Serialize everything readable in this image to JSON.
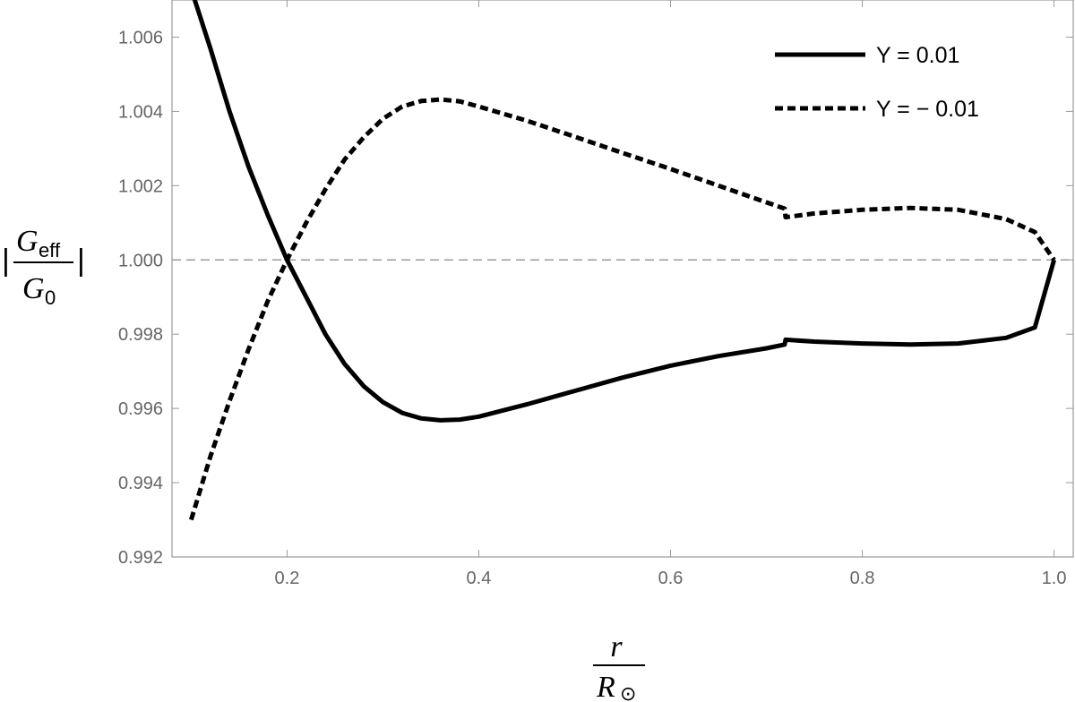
{
  "chart_data": {
    "type": "line",
    "xlim": [
      0.08,
      1.02
    ],
    "ylim": [
      0.992,
      1.007
    ],
    "x_ticks": [
      0.2,
      0.4,
      0.6,
      0.8,
      1.0
    ],
    "x_tick_labels": [
      "0.2",
      "0.4",
      "0.6",
      "0.8",
      "1.0"
    ],
    "y_ticks": [
      0.992,
      0.994,
      0.996,
      0.998,
      1.0,
      1.002,
      1.004,
      1.006
    ],
    "y_tick_labels": [
      "0.992",
      "0.994",
      "0.996",
      "0.998",
      "1.000",
      "1.002",
      "1.004",
      "1.006"
    ],
    "reference_line": {
      "y": 1.0,
      "style": "dashed",
      "color": "#888888"
    },
    "xlabel": {
      "numerator": "r",
      "denominator_main": "R",
      "denominator_sub": "⊙"
    },
    "ylabel": {
      "bar_left": "|",
      "bar_right": "|",
      "numerator_main": "G",
      "numerator_sub": "eff",
      "denominator_main": "G",
      "denominator_sub": "0"
    },
    "legend_position": "top-right",
    "series": [
      {
        "name": "Y = 0.01",
        "style": "solid",
        "color": "#000000",
        "points": [
          [
            0.1,
            1.0073
          ],
          [
            0.12,
            1.0057
          ],
          [
            0.14,
            1.004
          ],
          [
            0.16,
            1.0025
          ],
          [
            0.18,
            1.0012
          ],
          [
            0.2,
            1.0
          ],
          [
            0.22,
            0.999
          ],
          [
            0.24,
            0.998
          ],
          [
            0.26,
            0.9972
          ],
          [
            0.28,
            0.9966
          ],
          [
            0.3,
            0.99617
          ],
          [
            0.32,
            0.99588
          ],
          [
            0.34,
            0.99573
          ],
          [
            0.36,
            0.99568
          ],
          [
            0.38,
            0.9957
          ],
          [
            0.4,
            0.99578
          ],
          [
            0.45,
            0.99611
          ],
          [
            0.5,
            0.99647
          ],
          [
            0.55,
            0.99683
          ],
          [
            0.6,
            0.99715
          ],
          [
            0.65,
            0.99741
          ],
          [
            0.7,
            0.99762
          ],
          [
            0.719,
            0.99772
          ],
          [
            0.72,
            0.99785
          ],
          [
            0.75,
            0.9978
          ],
          [
            0.8,
            0.99775
          ],
          [
            0.85,
            0.99772
          ],
          [
            0.9,
            0.99775
          ],
          [
            0.95,
            0.9979
          ],
          [
            0.98,
            0.99818
          ],
          [
            1.0,
            1.0
          ]
        ]
      },
      {
        "name": "Y = − 0.01",
        "style": "dashed",
        "color": "#000000",
        "points": [
          [
            0.1,
            0.993
          ],
          [
            0.12,
            0.9947
          ],
          [
            0.14,
            0.9962
          ],
          [
            0.16,
            0.9976
          ],
          [
            0.18,
            0.9989
          ],
          [
            0.2,
            1.0
          ],
          [
            0.22,
            1.001
          ],
          [
            0.24,
            1.0019
          ],
          [
            0.26,
            1.0027
          ],
          [
            0.28,
            1.0033
          ],
          [
            0.3,
            1.0038
          ],
          [
            0.32,
            1.00413
          ],
          [
            0.34,
            1.00428
          ],
          [
            0.36,
            1.00432
          ],
          [
            0.38,
            1.00427
          ],
          [
            0.4,
            1.00413
          ],
          [
            0.45,
            1.00375
          ],
          [
            0.5,
            1.00332
          ],
          [
            0.55,
            1.00288
          ],
          [
            0.6,
            1.00245
          ],
          [
            0.65,
            1.002
          ],
          [
            0.7,
            1.00155
          ],
          [
            0.719,
            1.00138
          ],
          [
            0.72,
            1.00115
          ],
          [
            0.75,
            1.00125
          ],
          [
            0.8,
            1.00135
          ],
          [
            0.85,
            1.0014
          ],
          [
            0.9,
            1.00135
          ],
          [
            0.95,
            1.0011
          ],
          [
            0.98,
            1.00075
          ],
          [
            1.0,
            1.0
          ]
        ]
      }
    ]
  }
}
